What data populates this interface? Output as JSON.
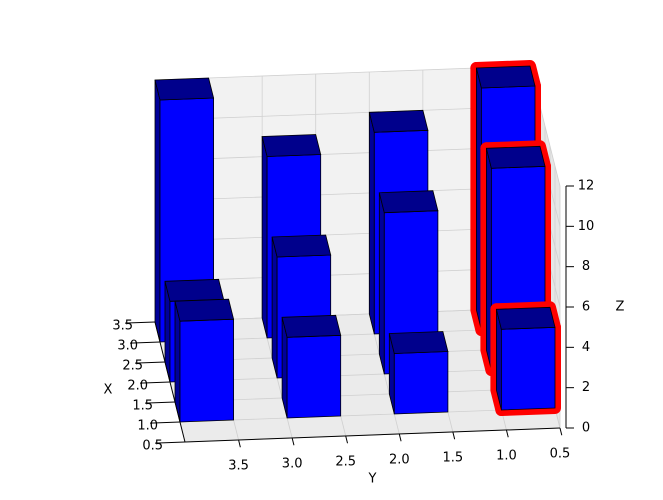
{
  "chart_data": {
    "type": "bar3d",
    "x_label": "X",
    "y_label": "Y",
    "z_label": "Z",
    "bars": {
      "x": [
        3,
        3,
        3,
        3,
        2,
        2,
        2,
        2,
        1,
        1,
        1,
        1
      ],
      "y": [
        0.5,
        1.5,
        2.5,
        3.5,
        0.5,
        1.5,
        2.5,
        3.5,
        0.5,
        1.5,
        2.5,
        3.5
      ],
      "z": [
        12,
        10,
        9,
        12,
        10,
        8,
        6,
        4,
        4,
        3,
        4,
        5
      ]
    },
    "color": "#0000ff",
    "highlight": {
      "y": 0.5,
      "color": "#ff0000"
    },
    "xlim": [
      0.5,
      3.5
    ],
    "ylim": [
      0.5,
      4
    ],
    "zlim": [
      0,
      12
    ],
    "xticks": [
      0.5,
      {
        "value": 1,
        "label": "1.0"
      },
      1.5,
      {
        "value": 2,
        "label": "2.0"
      },
      2.5,
      {
        "value": 3,
        "label": "3.0"
      },
      3.5
    ],
    "yticks": [
      0.5,
      {
        "value": 1,
        "label": "1.0"
      },
      1.5,
      {
        "value": 2,
        "label": "2.0"
      },
      2.5,
      {
        "value": 3,
        "label": "3.0"
      },
      3.5
    ],
    "zticks": [
      0,
      2,
      4,
      6,
      8,
      10,
      12
    ],
    "grid": true
  }
}
